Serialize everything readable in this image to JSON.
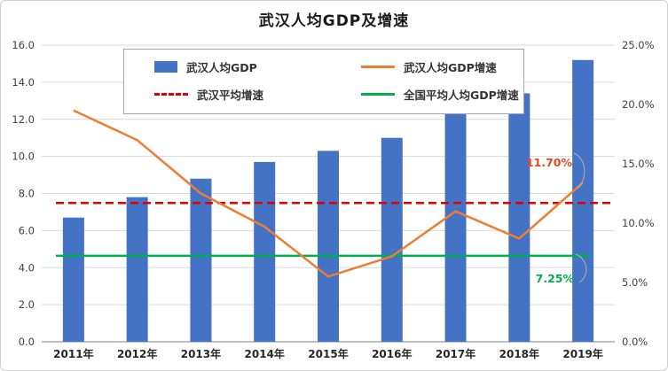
{
  "chart_data": {
    "type": "bar",
    "subtype": "combo-bar-line",
    "title": "武汉人均GDP及增速",
    "categories": [
      "2011年",
      "2012年",
      "2013年",
      "2014年",
      "2015年",
      "2016年",
      "2017年",
      "2018年",
      "2019年"
    ],
    "series": [
      {
        "name": "武汉人均GDP",
        "type": "bar",
        "axis": "left",
        "color": "#4472c4",
        "values": [
          6.7,
          7.8,
          8.8,
          9.7,
          10.3,
          11.0,
          12.3,
          13.4,
          15.2
        ]
      },
      {
        "name": "武汉人均GDP增速",
        "type": "line",
        "axis": "right",
        "color": "#ed7d31",
        "values": [
          19.5,
          17.0,
          12.5,
          9.7,
          5.5,
          7.2,
          11.0,
          8.7,
          13.4
        ]
      },
      {
        "name": "武汉平均增速",
        "type": "dashed-line",
        "axis": "right",
        "color": "#e00000",
        "value": 11.7
      },
      {
        "name": "全国平均人均GDP增速",
        "type": "line",
        "axis": "right",
        "color": "#00b050",
        "value": 7.25
      }
    ],
    "left_axis": {
      "min": 0,
      "max": 16,
      "step": 2,
      "tick_labels": [
        "0.0",
        "2.0",
        "4.0",
        "6.0",
        "8.0",
        "10.0",
        "12.0",
        "14.0",
        "16.0"
      ]
    },
    "right_axis": {
      "min": 0,
      "max": 25,
      "step": 5,
      "tick_labels": [
        "0.0%",
        "5.0%",
        "10.0%",
        "15.0%",
        "20.0%",
        "25.0%"
      ]
    },
    "annotations": [
      {
        "text": "11.70%",
        "color": "#e8491d",
        "refers_to": "武汉平均增速"
      },
      {
        "text": "7.25%",
        "color": "#00b050",
        "refers_to": "全国平均人均GDP增速"
      }
    ],
    "grid": true,
    "legend_position": "top-inside",
    "colors": {
      "gridline": "#d9d9d9",
      "axis_line": "#808080",
      "axis_text": "#404040",
      "category_text": "#262626"
    }
  }
}
